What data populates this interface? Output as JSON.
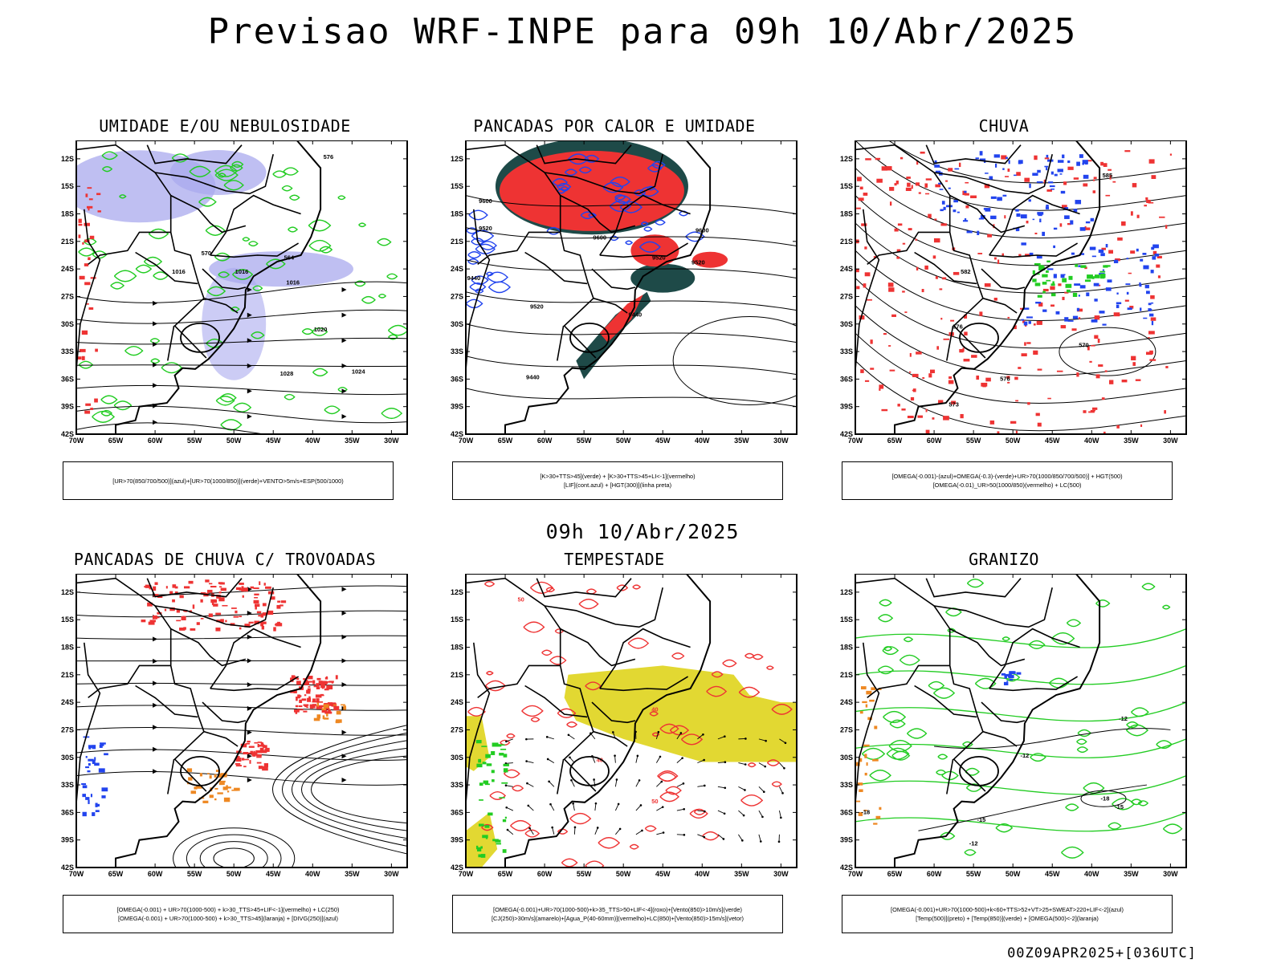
{
  "title": "Previsao WRF-INPE  para 09h 10/Abr/2025",
  "mid_date": "09h 10/Abr/2025",
  "footer": "00Z09APR2025+[036UTC]",
  "axes": {
    "lat_ticks": [
      "12S",
      "15S",
      "18S",
      "21S",
      "24S",
      "27S",
      "30S",
      "33S",
      "36S",
      "39S",
      "42S"
    ],
    "lon_ticks": [
      "70W",
      "65W",
      "60W",
      "55W",
      "50W",
      "45W",
      "40W",
      "35W",
      "30W"
    ]
  },
  "colors": {
    "green": "#22cc22",
    "red": "#ee3333",
    "blue": "#2244ee",
    "lavender": "#aaaaee",
    "darkteal": "#1e4a48",
    "yellow": "#e2d832",
    "orange": "#ee8822"
  },
  "panels": [
    {
      "id": "umidade",
      "title": "UMIDADE E/OU NEBULOSIDADE",
      "legend": [
        "[UR>70(850/700/500)](azul)+[UR>70(1000/850)](verde)+VENTO>5m/s+ESP(500/1000)"
      ],
      "contour_labels": [
        "1016",
        "1016",
        "1016",
        "1020",
        "1024",
        "1028",
        "570",
        "564",
        "576"
      ]
    },
    {
      "id": "pancadas-calor",
      "title": "PANCADAS POR CALOR E UMIDADE",
      "legend": [
        "[K>30+TTS>45](verde) + [K>30+TTS>45+LI<-1](vermelho)",
        "[LIF](cont.azul) + [HGT(300)](linha preta)"
      ],
      "contour_labels": [
        "9600",
        "9520",
        "9600",
        "9600",
        "9520",
        "9520",
        "9440",
        "9440",
        "9440",
        "9520"
      ]
    },
    {
      "id": "chuva",
      "title": "CHUVA",
      "legend": [
        "[OMEGA(-0.001)-(azul)+OMEGA(-0.3)-(verde)+UR>70(1000/850/700/500)] + HGT(500)",
        "[OMEGA(-0.01)_UR>50(1000/850)(vermelho) + LC(500)"
      ],
      "contour_labels": [
        "585",
        "582",
        "576",
        "570",
        "576",
        "573"
      ]
    },
    {
      "id": "pancadas-trovoadas",
      "title": "PANCADAS DE CHUVA C/ TROVOADAS",
      "legend": [
        "[OMEGA(-0.001) + UR>70(1000-500) + k>30_TTS>45+LIF<-1](vermelho) + LC(250)",
        "[OMEGA(-0.001) + UR>70(1000-500) + k>30_TTS>45](laranja) + [DIVG(250)](azul)"
      ],
      "contour_labels": []
    },
    {
      "id": "tempestade",
      "title": "TEMPESTADE",
      "legend": [
        "[OMEGA(-0.001)+UR>70(1000-500)+k>35_TTS>50+LIF<-4](roxo)+[Vento(850)>10m/s](verde)",
        "[CJ(250)>30m/s](amarelo)+[Agua_P(40-60mm)](vermelho)+LC(850)+[Vento(850)>15m/s](vetor)"
      ],
      "contour_labels": [
        "50",
        "40",
        "50",
        "40"
      ]
    },
    {
      "id": "granizo",
      "title": "GRANIZO",
      "legend": [
        "[OMEGA(-0.001)+UR>70(1000-500)+k<60+TTS>52+VT>25+SWEAT>220+LIF<-2](azul)",
        "[Temp(500)](preto) + [Temp(850)](verde) + [OMEGA(500)<-2](laranja)"
      ],
      "contour_labels": [
        "-12",
        "-12",
        "-15",
        "-18",
        "-15",
        "-12",
        "-18"
      ]
    }
  ]
}
